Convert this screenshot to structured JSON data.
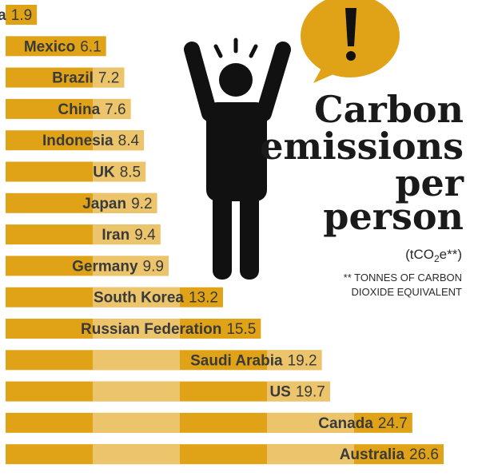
{
  "title_lines": [
    "Carbon",
    "emissions",
    "per",
    "person"
  ],
  "unit_main": "(tCO",
  "unit_sub": "2",
  "unit_end": "e**)",
  "footnote": [
    "** TONNES OF CARBON",
    "DIOXIDE EQUIVALENT"
  ],
  "icons": {
    "figure": "stressed-person-icon",
    "bubble": "exclamation-speech-bubble-icon"
  },
  "colors": {
    "bar": "#e0a318",
    "bar_light": "#ecc46b",
    "text": "#3a3a3a",
    "figure": "#111111"
  },
  "chart_data": {
    "type": "bar",
    "orientation": "horizontal",
    "title": "Carbon emissions per person",
    "unit": "tCO2e",
    "categories": [
      "India",
      "Mexico",
      "Brazil",
      "China",
      "Indonesia",
      "UK",
      "Japan",
      "Iran",
      "Germany",
      "South Korea",
      "Russian Federation",
      "Saudi Arabia",
      "US",
      "Canada",
      "Australia"
    ],
    "values": [
      1.9,
      6.1,
      7.2,
      7.6,
      8.4,
      8.5,
      9.2,
      9.4,
      9.9,
      13.2,
      15.5,
      19.2,
      19.7,
      24.7,
      26.6
    ],
    "value_labels": [
      "1.9",
      "6.1",
      "7.2",
      "7.6",
      "8.4",
      "8.5",
      "9.2",
      "9.4",
      "9.9",
      "13.2",
      "15.5",
      "19.2",
      "19.7",
      "24.7",
      "26.6"
    ],
    "xlim": [
      0,
      26.6
    ],
    "grid": false,
    "legend": "none"
  }
}
